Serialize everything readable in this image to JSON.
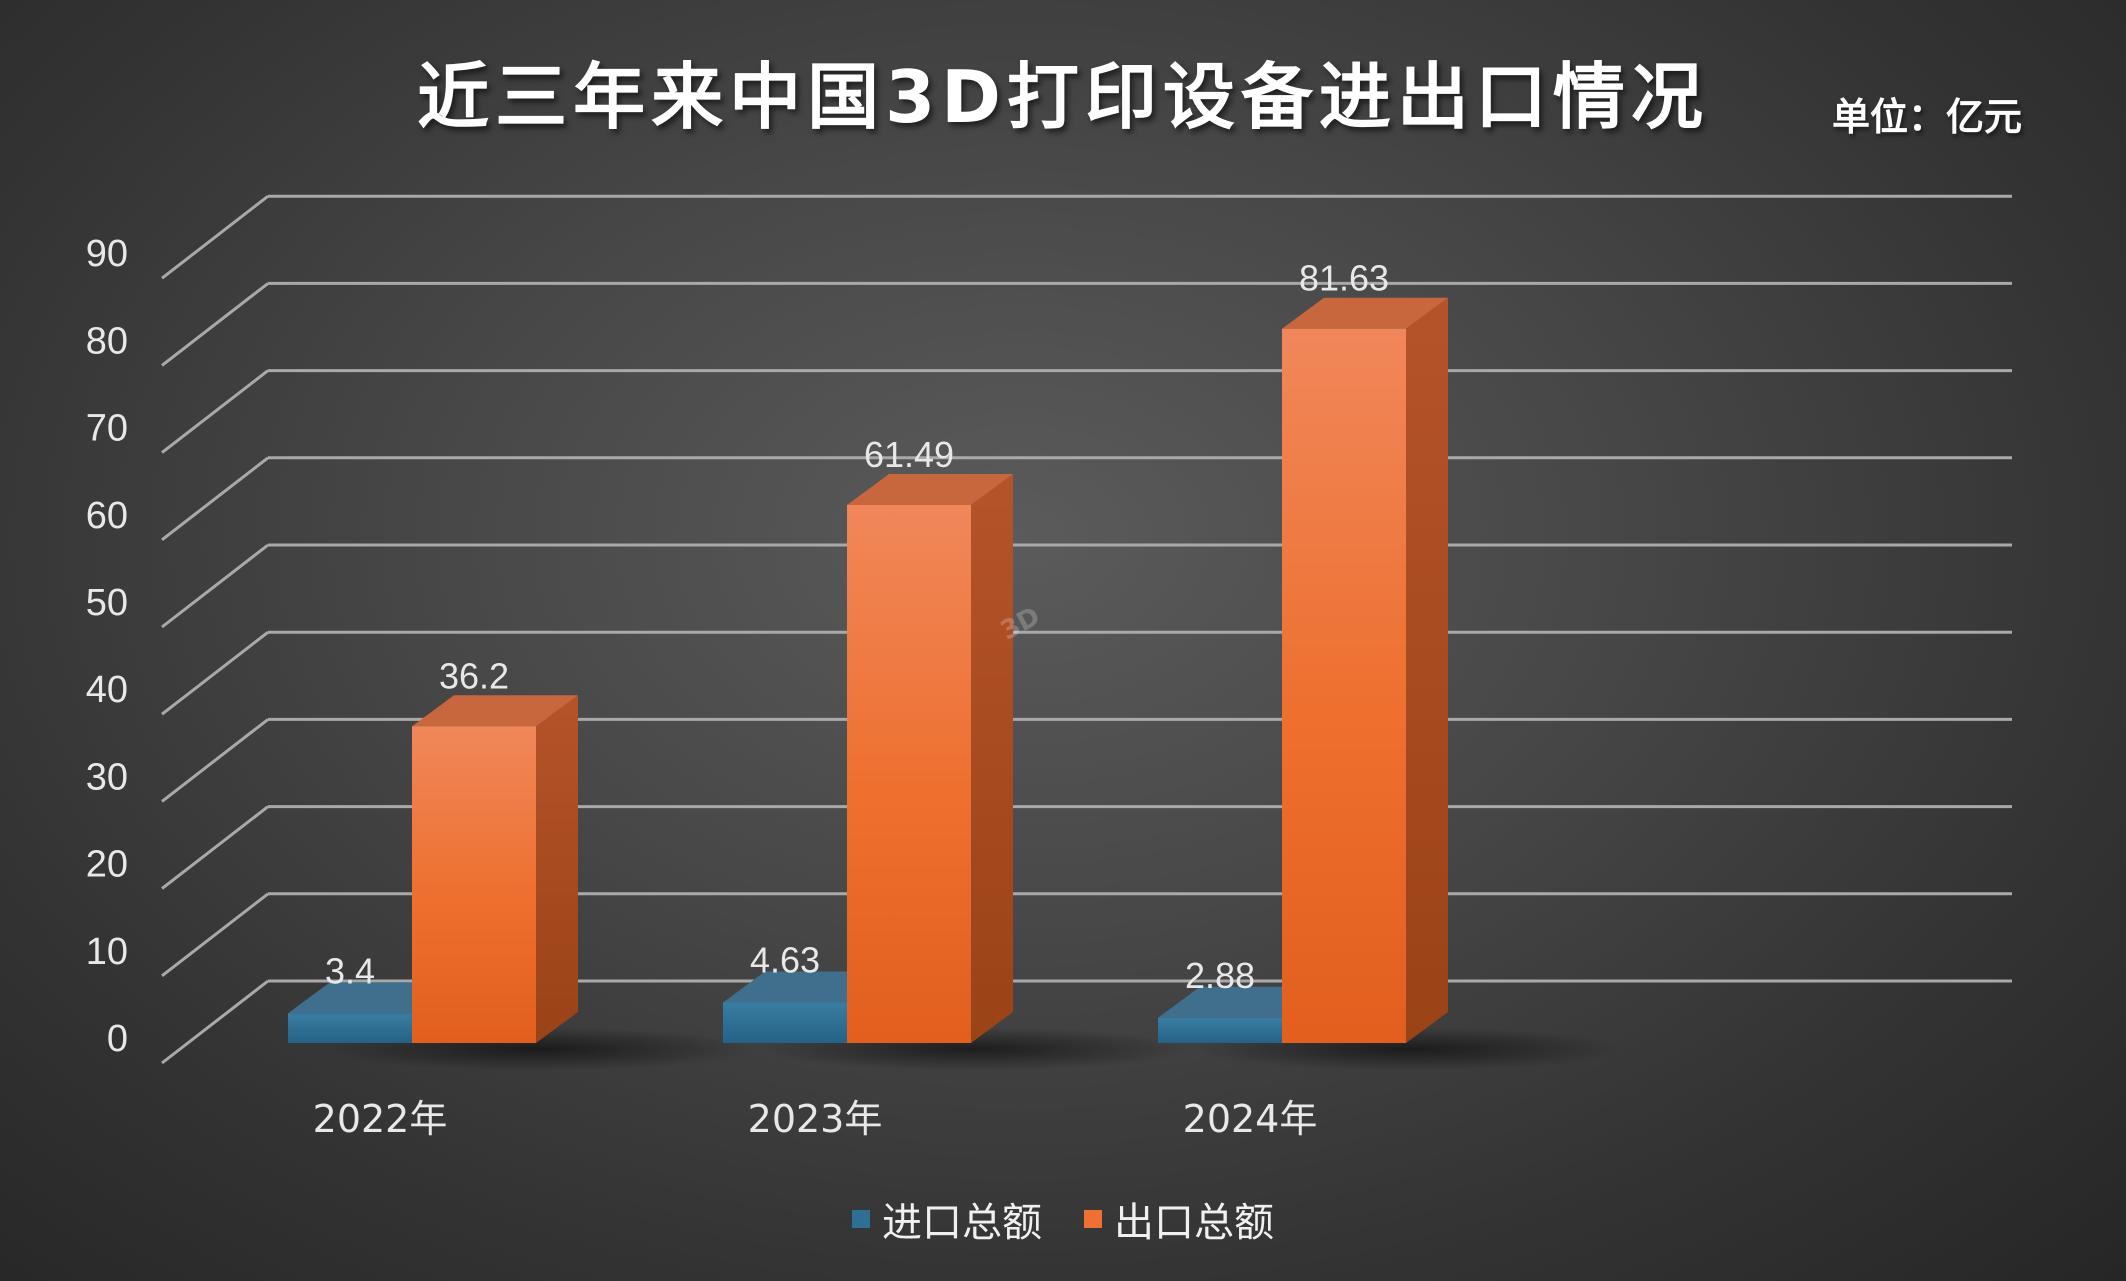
{
  "title": "近三年来中国3D打印设备进出口情况",
  "unit_label": "单位：亿元",
  "watermark": "3D",
  "colors": {
    "import": "#2f6f93",
    "export": "#ee7032",
    "grid": "#a9a9a9",
    "text": "#e8e8e8"
  },
  "chart_data": {
    "type": "bar",
    "categories": [
      "2022年",
      "2023年",
      "2024年"
    ],
    "series": [
      {
        "name": "进口总额",
        "values": [
          3.4,
          4.63,
          2.88
        ]
      },
      {
        "name": "出口总额",
        "values": [
          36.2,
          61.49,
          81.63
        ]
      }
    ],
    "data_labels": [
      [
        "3.4",
        "4.63",
        "2.88"
      ],
      [
        "36.2",
        "61.49",
        "81.63"
      ]
    ],
    "y_ticks": [
      "0",
      "10",
      "20",
      "30",
      "40",
      "50",
      "60",
      "70",
      "80",
      "90"
    ],
    "ylim": [
      0,
      90
    ],
    "grid": true,
    "legend_position": "bottom",
    "style": "3d-column"
  },
  "legend": {
    "items": [
      "进口总额",
      "出口总额"
    ]
  }
}
